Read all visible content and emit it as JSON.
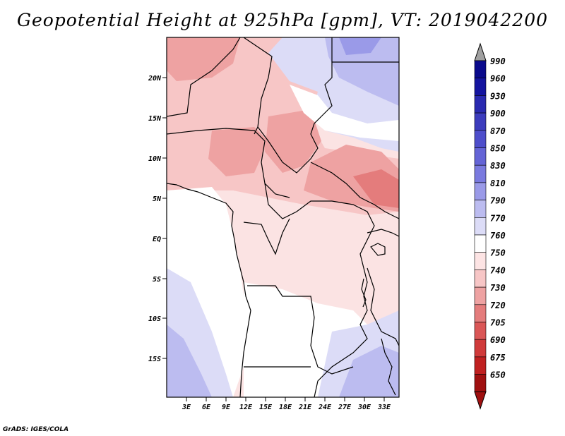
{
  "figure": {
    "title": "Geopotential Height at 925hPa [gpm], VT: 2019042200",
    "credit": "GrADS: IGES/COLA"
  },
  "axes": {
    "lat_labels": [
      "20N",
      "15N",
      "10N",
      "5N",
      "EQ",
      "5S",
      "10S",
      "15S"
    ],
    "lon_labels": [
      "3E",
      "6E",
      "9E",
      "12E",
      "15E",
      "18E",
      "21E",
      "24E",
      "27E",
      "30E",
      "33E"
    ]
  },
  "colorbar": {
    "levels": [
      "990",
      "960",
      "930",
      "900",
      "870",
      "850",
      "830",
      "810",
      "790",
      "770",
      "760",
      "750",
      "740",
      "730",
      "720",
      "705",
      "690",
      "675",
      "650"
    ],
    "colors": [
      "#0a0a8c",
      "#14149f",
      "#2a2ab0",
      "#3c3cbd",
      "#4e4ecb",
      "#6464d6",
      "#7a7adf",
      "#9a9ae8",
      "#bcbcf0",
      "#dcdcf7",
      "#ffffff",
      "#fde4e4",
      "#f7c6c6",
      "#eea2a2",
      "#e47c7c",
      "#da5656",
      "#d03a3a",
      "#c02020",
      "#a01010"
    ],
    "top_arrow_color": "#a0a0a0",
    "bottom_arrow_color": "#a01010"
  }
}
